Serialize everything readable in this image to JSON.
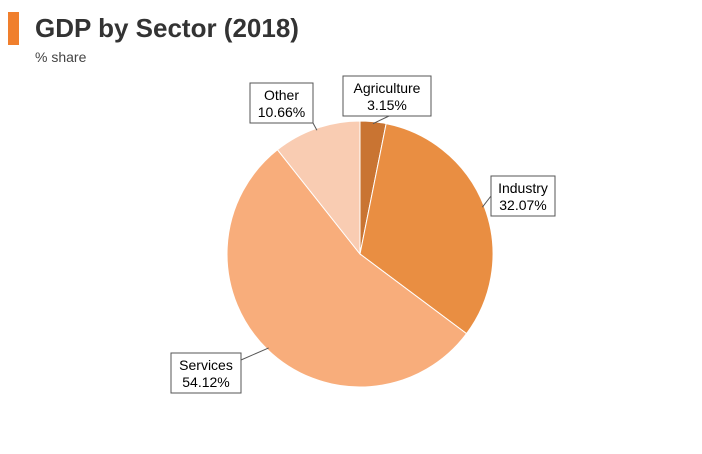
{
  "header": {
    "title": "GDP by Sector (2018)",
    "subtitle": "% share",
    "accent_color": "#f07f2d"
  },
  "chart_data": {
    "type": "pie",
    "title": "GDP by Sector (2018)",
    "subtitle": "% share",
    "unit": "%",
    "slices": [
      {
        "name": "Agriculture",
        "value": 3.15,
        "label": "3.15%",
        "color": "#c97432"
      },
      {
        "name": "Industry",
        "value": 32.07,
        "label": "32.07%",
        "color": "#e98e42"
      },
      {
        "name": "Services",
        "value": 54.12,
        "label": "54.12%",
        "color": "#f8ad7b"
      },
      {
        "name": "Other",
        "value": 10.66,
        "label": "10.66%",
        "color": "#f9ccb2"
      }
    ],
    "start_angle_deg": 0,
    "direction": "clockwise",
    "label_style": "callout-boxes"
  }
}
